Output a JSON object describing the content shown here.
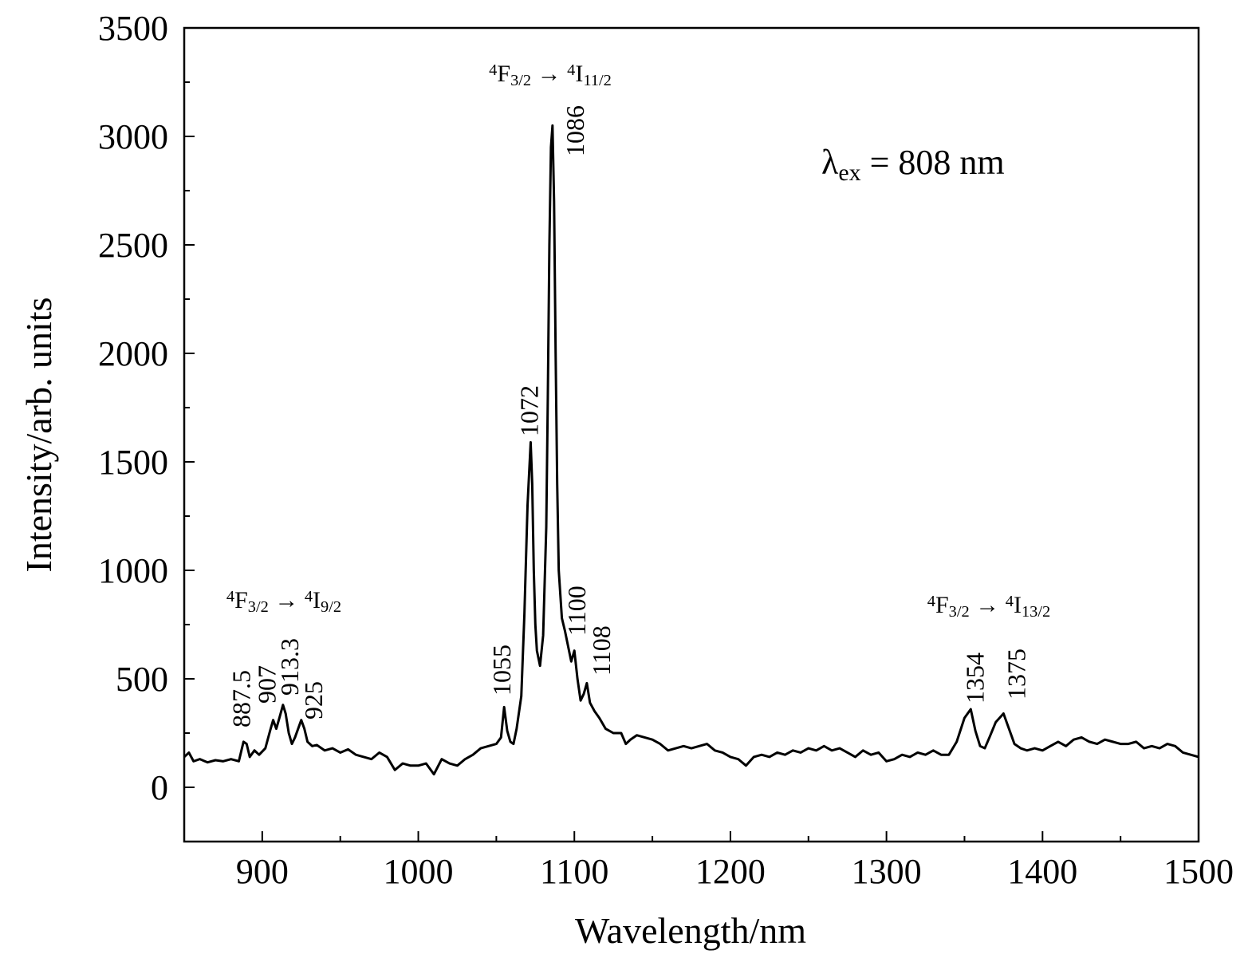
{
  "chart_data": {
    "type": "line",
    "xlabel": "Wavelength/nm",
    "ylabel": "Intensity/arb. units",
    "xlim": [
      850,
      1500
    ],
    "ylim": [
      -250,
      3500
    ],
    "xticks": [
      900,
      1000,
      1100,
      1200,
      1300,
      1400,
      1500
    ],
    "xminorticks": [
      850,
      950,
      1050,
      1150,
      1250,
      1350,
      1450
    ],
    "yticks": [
      0,
      500,
      1000,
      1500,
      2000,
      2500,
      3000,
      3500
    ],
    "yminorticks": [
      -250,
      250,
      750,
      1250,
      1750,
      2250,
      2750,
      3250
    ],
    "grid": false,
    "series": [
      {
        "color": "#000000",
        "x": [
          850,
          853,
          856,
          860,
          865,
          870,
          875,
          880,
          885,
          888,
          890,
          892,
          895,
          898,
          902,
          905,
          907,
          909,
          911,
          913.3,
          915,
          917,
          919,
          921,
          925,
          927,
          929,
          932,
          935,
          940,
          945,
          950,
          955,
          960,
          965,
          970,
          975,
          980,
          985,
          990,
          995,
          1000,
          1005,
          1010,
          1015,
          1020,
          1025,
          1030,
          1035,
          1040,
          1045,
          1050,
          1053,
          1055,
          1057,
          1059,
          1061,
          1063,
          1066,
          1068,
          1070,
          1072,
          1073,
          1074,
          1075,
          1076,
          1078,
          1080,
          1082,
          1083,
          1084,
          1085,
          1086,
          1087,
          1088,
          1089,
          1090,
          1092,
          1094,
          1096,
          1098,
          1100,
          1102,
          1104,
          1106,
          1108,
          1110,
          1113,
          1116,
          1120,
          1125,
          1130,
          1133,
          1136,
          1140,
          1145,
          1150,
          1155,
          1160,
          1165,
          1170,
          1175,
          1180,
          1185,
          1190,
          1195,
          1200,
          1205,
          1210,
          1215,
          1220,
          1225,
          1230,
          1235,
          1240,
          1245,
          1250,
          1255,
          1260,
          1265,
          1270,
          1275,
          1280,
          1285,
          1290,
          1295,
          1300,
          1305,
          1310,
          1315,
          1320,
          1325,
          1330,
          1335,
          1340,
          1345,
          1350,
          1354,
          1357,
          1360,
          1363,
          1366,
          1370,
          1375,
          1378,
          1382,
          1386,
          1390,
          1395,
          1400,
          1405,
          1410,
          1415,
          1420,
          1425,
          1430,
          1435,
          1440,
          1445,
          1450,
          1455,
          1460,
          1465,
          1470,
          1475,
          1480,
          1485,
          1490,
          1495,
          1500
        ],
        "values": [
          140,
          160,
          120,
          130,
          115,
          125,
          120,
          130,
          120,
          210,
          200,
          140,
          170,
          150,
          180,
          260,
          310,
          270,
          320,
          380,
          340,
          250,
          200,
          230,
          310,
          270,
          210,
          190,
          195,
          170,
          180,
          160,
          175,
          150,
          140,
          130,
          160,
          140,
          80,
          110,
          100,
          100,
          110,
          60,
          130,
          110,
          100,
          130,
          150,
          180,
          190,
          200,
          230,
          370,
          260,
          210,
          200,
          270,
          420,
          800,
          1300,
          1590,
          1400,
          1000,
          750,
          630,
          560,
          700,
          1200,
          1800,
          2500,
          2950,
          3050,
          2700,
          2000,
          1400,
          1000,
          780,
          720,
          650,
          580,
          630,
          500,
          400,
          430,
          480,
          390,
          350,
          320,
          270,
          250,
          250,
          200,
          220,
          240,
          230,
          220,
          200,
          170,
          180,
          190,
          180,
          190,
          200,
          170,
          160,
          140,
          130,
          100,
          140,
          150,
          140,
          160,
          150,
          170,
          160,
          180,
          170,
          190,
          170,
          180,
          160,
          140,
          170,
          150,
          160,
          120,
          130,
          150,
          140,
          160,
          150,
          170,
          150,
          150,
          210,
          320,
          360,
          260,
          190,
          180,
          230,
          300,
          340,
          280,
          200,
          180,
          170,
          180,
          170,
          190,
          210,
          190,
          220,
          230,
          210,
          200,
          220,
          210,
          200,
          200,
          210,
          180,
          190,
          180,
          200,
          190,
          160,
          150,
          140
        ]
      }
    ],
    "peak_labels": [
      887.5,
      907,
      913.3,
      925,
      1055,
      1072,
      1086,
      1100,
      1108,
      1354,
      1375
    ],
    "annotations": [
      {
        "segments": [
          {
            "text": "4",
            "style": "sup"
          },
          {
            "text": "F"
          },
          {
            "text": "3/2",
            "style": "sub"
          },
          {
            "text": " → "
          },
          {
            "text": "4",
            "style": "sup"
          },
          {
            "text": "I"
          },
          {
            "text": "11/2",
            "style": "sub"
          }
        ]
      },
      {
        "segments": [
          {
            "text": "4",
            "style": "sup"
          },
          {
            "text": "F"
          },
          {
            "text": "3/2",
            "style": "sub"
          },
          {
            "text": " → "
          },
          {
            "text": "4",
            "style": "sup"
          },
          {
            "text": "I"
          },
          {
            "text": "9/2",
            "style": "sub"
          }
        ]
      },
      {
        "segments": [
          {
            "text": "4",
            "style": "sup"
          },
          {
            "text": "F"
          },
          {
            "text": "3/2",
            "style": "sub"
          },
          {
            "text": " → "
          },
          {
            "text": "4",
            "style": "sup"
          },
          {
            "text": "I"
          },
          {
            "text": "13/2",
            "style": "sub"
          }
        ]
      },
      {
        "segments": [
          {
            "text": "λ"
          },
          {
            "text": "ex",
            "style": "sub"
          },
          {
            "text": " = 808 nm"
          }
        ]
      }
    ]
  }
}
